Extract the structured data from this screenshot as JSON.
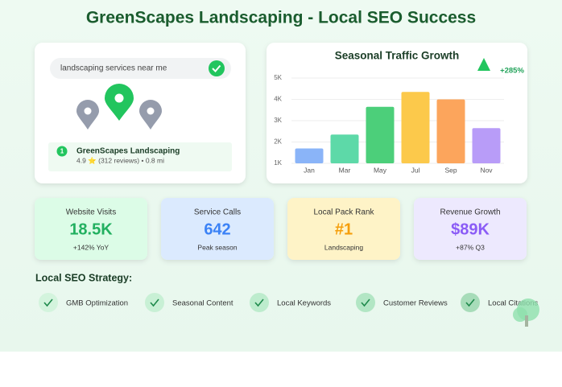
{
  "header": {
    "title": "GreenScapes Landscaping - Local SEO Success"
  },
  "search": {
    "query": "landscaping services near me",
    "listing": {
      "rank": "1",
      "name": "GreenScapes Landscaping",
      "details": "4.9 ⭐ (312 reviews) • 0.8 mi"
    }
  },
  "chart_data": {
    "type": "bar",
    "title": "Seasonal Traffic Growth",
    "annotation": "+285%",
    "categories": [
      "Jan",
      "Mar",
      "May",
      "Jul",
      "Sep",
      "Nov"
    ],
    "values": [
      1700,
      2350,
      3650,
      4350,
      4000,
      2650
    ],
    "colors": [
      "#8ab4f8",
      "#5dd9a8",
      "#4ccf7a",
      "#fcc94b",
      "#fca55c",
      "#b89cf8"
    ],
    "ylim": [
      1000,
      5000
    ],
    "yticks": [
      {
        "value": 1000,
        "label": "1K"
      },
      {
        "value": 2000,
        "label": "2K"
      },
      {
        "value": 3000,
        "label": "3K"
      },
      {
        "value": 4000,
        "label": "4K"
      },
      {
        "value": 5000,
        "label": "5K"
      }
    ],
    "grid": true
  },
  "metrics": [
    {
      "label": "Website Visits",
      "value": "18.5K",
      "sub": "+142% YoY"
    },
    {
      "label": "Service Calls",
      "value": "642",
      "sub": "Peak season"
    },
    {
      "label": "Local Pack Rank",
      "value": "#1",
      "sub": "Landscaping"
    },
    {
      "label": "Revenue Growth",
      "value": "$89K",
      "sub": "+87% Q3"
    }
  ],
  "strategy": {
    "title": "Local SEO Strategy:",
    "items": [
      "GMB Optimization",
      "Seasonal Content",
      "Local Keywords",
      "Customer Reviews",
      "Local Citations"
    ]
  }
}
